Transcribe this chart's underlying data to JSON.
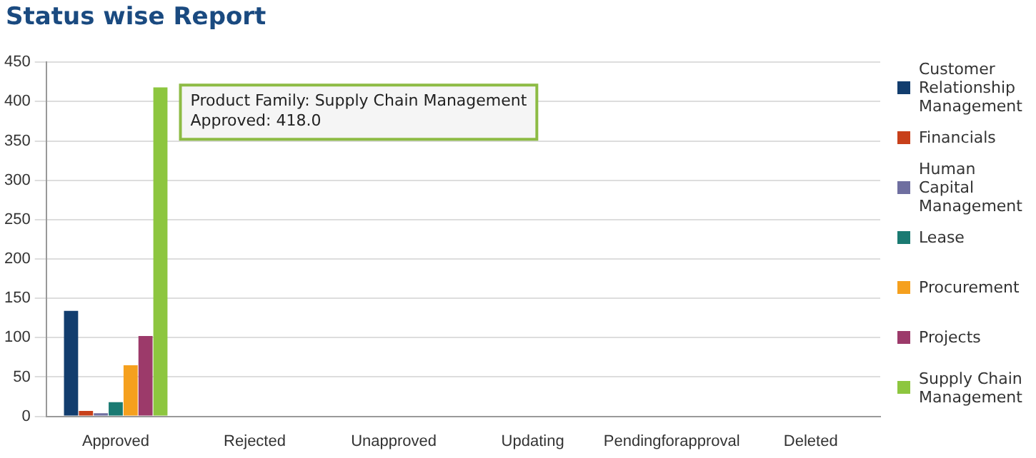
{
  "chart_data": {
    "type": "bar",
    "title": "Status wise Report",
    "categories": [
      "Approved",
      "Rejected",
      "Unapproved",
      "Updating",
      "Pendingforapproval",
      "Deleted"
    ],
    "series": [
      {
        "name": "Customer Relationship Management",
        "color": "#123d6e",
        "values": [
          134,
          0,
          0,
          0,
          0,
          0
        ]
      },
      {
        "name": "Financials",
        "color": "#c8401a",
        "values": [
          7,
          0,
          0,
          0,
          0,
          0
        ]
      },
      {
        "name": "Human Capital Management",
        "color": "#6f6fa0",
        "values": [
          4,
          0,
          0,
          0,
          0,
          0
        ]
      },
      {
        "name": "Lease",
        "color": "#1a7a72",
        "values": [
          18,
          0,
          0,
          0,
          0,
          0
        ]
      },
      {
        "name": "Procurement",
        "color": "#f5a01e",
        "values": [
          65,
          0,
          0,
          0,
          0,
          0
        ]
      },
      {
        "name": "Projects",
        "color": "#9c3a6a",
        "values": [
          102,
          0,
          0,
          0,
          0,
          0
        ]
      },
      {
        "name": "Supply Chain Management",
        "color": "#8dc63f",
        "values": [
          418,
          0,
          0,
          0,
          0,
          0
        ]
      }
    ],
    "ylim": [
      0,
      450
    ],
    "yticks": [
      0,
      50,
      100,
      150,
      200,
      250,
      300,
      350,
      400,
      450
    ],
    "grid": "y",
    "legend": "right",
    "annotations": [
      "Product Family: Supply Chain Management\nApproved: 418.0"
    ]
  }
}
